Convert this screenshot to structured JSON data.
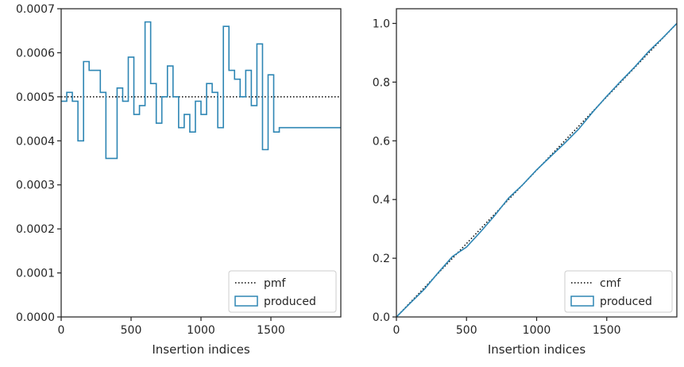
{
  "chart_data": [
    {
      "type": "step",
      "panel": "left",
      "xlabel": "Insertion indices",
      "ylabel": "",
      "xlim": [
        0,
        2000
      ],
      "ylim": [
        0,
        0.0007
      ],
      "xticks": [
        0,
        500,
        1000,
        1500
      ],
      "xtick_labels": [
        "0",
        "500",
        "1000",
        "1500"
      ],
      "yticks": [
        0,
        0.0001,
        0.0002,
        0.0003,
        0.0004,
        0.0005,
        0.0006,
        0.0007
      ],
      "ytick_labels": [
        "0.0000",
        "0.0001",
        "0.0002",
        "0.0003",
        "0.0004",
        "0.0005",
        "0.0006",
        "0.0007"
      ],
      "grid": false,
      "legend_position": "lower-right",
      "series": [
        {
          "name": "pmf",
          "style": "dotted",
          "color": "#000000",
          "x": [
            0,
            2000
          ],
          "y": [
            0.0005,
            0.0005
          ]
        },
        {
          "name": "produced",
          "style": "step-histogram",
          "color": "#2e86b4",
          "bin_edges": [
            0,
            40,
            80,
            120,
            160,
            200,
            240,
            280,
            320,
            360,
            400,
            440,
            480,
            520,
            560,
            600,
            640,
            680,
            720,
            760,
            800,
            840,
            880,
            920,
            960,
            1000,
            1040,
            1080,
            1120,
            1160,
            1200,
            1240,
            1280,
            1320,
            1360,
            1400,
            1440,
            1480,
            1520,
            1560,
            1600,
            1640,
            1680,
            1720,
            1760,
            1800,
            1840,
            1880,
            1920,
            1960,
            2000
          ],
          "values": [
            0.00049,
            0.00051,
            0.00049,
            0.0004,
            0.00058,
            0.00056,
            0.00056,
            0.00051,
            0.00036,
            0.00036,
            0.00052,
            0.00049,
            0.00059,
            0.00046,
            0.00048,
            0.00067,
            0.00053,
            0.00044,
            0.0005,
            0.00057,
            0.0005,
            0.00043,
            0.00046,
            0.00042,
            0.00049,
            0.00046,
            0.00053,
            0.00051,
            0.00043,
            0.00066,
            0.00056,
            0.00054,
            0.0005,
            0.00056,
            0.00048,
            0.00062,
            0.00038,
            0.00055,
            0.00042,
            0.00043,
            0.00043,
            0.00043,
            0.00043,
            0.00043,
            0.00043,
            0.00043,
            0.00043,
            0.00043,
            0.00043,
            0.00043
          ]
        }
      ]
    },
    {
      "type": "line",
      "panel": "right",
      "xlabel": "Insertion indices",
      "ylabel": "",
      "xlim": [
        0,
        2000
      ],
      "ylim": [
        0,
        1.05
      ],
      "xticks": [
        0,
        500,
        1000,
        1500
      ],
      "xtick_labels": [
        "0",
        "500",
        "1000",
        "1500"
      ],
      "yticks": [
        0,
        0.2,
        0.4,
        0.6,
        0.8,
        1.0
      ],
      "ytick_labels": [
        "0.0",
        "0.2",
        "0.4",
        "0.6",
        "0.8",
        "1.0"
      ],
      "grid": false,
      "legend_position": "lower-right",
      "series": [
        {
          "name": "cmf",
          "style": "dotted",
          "color": "#000000",
          "x": [
            0,
            2000
          ],
          "y": [
            0,
            1.0
          ]
        },
        {
          "name": "produced",
          "style": "step",
          "color": "#2e86b4",
          "x": [
            0,
            100,
            200,
            300,
            400,
            500,
            600,
            700,
            800,
            900,
            1000,
            1100,
            1200,
            1300,
            1400,
            1500,
            1600,
            1700,
            1800,
            1900,
            2000
          ],
          "y": [
            0,
            0.048,
            0.095,
            0.152,
            0.206,
            0.238,
            0.29,
            0.345,
            0.405,
            0.45,
            0.501,
            0.547,
            0.592,
            0.64,
            0.698,
            0.752,
            0.803,
            0.852,
            0.905,
            0.951,
            1.0
          ]
        }
      ]
    }
  ]
}
